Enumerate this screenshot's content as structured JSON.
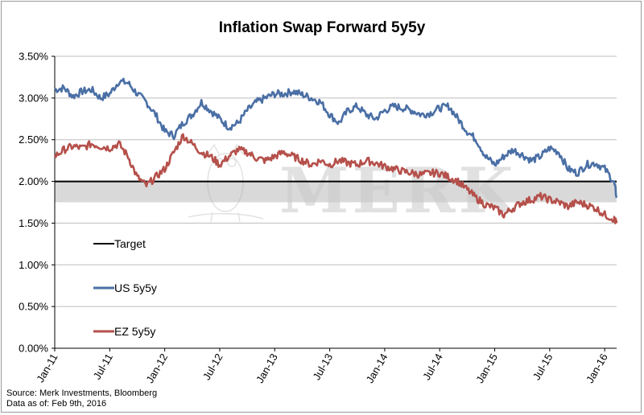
{
  "chart_data": {
    "type": "line",
    "title": "Inflation Swap Forward 5y5y",
    "watermark": "MERK",
    "ylim": [
      0,
      3.5
    ],
    "y_ticks": [
      "0.00%",
      "0.50%",
      "1.00%",
      "1.50%",
      "2.00%",
      "2.50%",
      "3.00%",
      "3.50%"
    ],
    "y_tick_values": [
      0,
      0.5,
      1,
      1.5,
      2,
      2.5,
      3,
      3.5
    ],
    "x_ticks": [
      "Jan-11",
      "Jul-11",
      "Jan-12",
      "Jul-12",
      "Jan-13",
      "Jul-13",
      "Jan-14",
      "Jul-14",
      "Jan-15",
      "Jul-15",
      "Jan-16"
    ],
    "x_tick_months": [
      0,
      6,
      12,
      18,
      24,
      30,
      36,
      42,
      48,
      54,
      60
    ],
    "x_range_months": [
      0,
      61.3
    ],
    "grid": "horizontal",
    "legend_position": "lower-left",
    "target_band": [
      1.75,
      2.0
    ],
    "target_value": 2.0,
    "series": [
      {
        "name": "Target",
        "color": "#000000",
        "x_months": [
          0,
          61.3
        ],
        "values": [
          2.0,
          2.0
        ]
      },
      {
        "name": "US 5y5y",
        "color": "#4a6fa5",
        "x_months": [
          0,
          1,
          2,
          3,
          4,
          5,
          6,
          7,
          8,
          9,
          10,
          11,
          12,
          13,
          14,
          15,
          16,
          17,
          18,
          19,
          20,
          21,
          22,
          23,
          24,
          25,
          26,
          27,
          28,
          29,
          30,
          31,
          32,
          33,
          34,
          35,
          36,
          37,
          38,
          39,
          40,
          41,
          42,
          43,
          44,
          45,
          46,
          47,
          48,
          49,
          50,
          51,
          52,
          53,
          54,
          55,
          56,
          57,
          58,
          59,
          60,
          61,
          61.3
        ],
        "values": [
          3.1,
          3.12,
          3.02,
          3.08,
          3.1,
          3.0,
          3.05,
          3.2,
          3.18,
          3.05,
          2.95,
          2.8,
          2.6,
          2.55,
          2.7,
          2.8,
          2.95,
          2.85,
          2.75,
          2.65,
          2.7,
          2.85,
          2.95,
          3.0,
          3.05,
          3.05,
          3.08,
          3.04,
          3.0,
          2.95,
          2.8,
          2.7,
          2.85,
          2.9,
          2.8,
          2.75,
          2.85,
          2.9,
          2.88,
          2.85,
          2.8,
          2.82,
          2.88,
          2.9,
          2.75,
          2.6,
          2.5,
          2.3,
          2.2,
          2.3,
          2.38,
          2.32,
          2.25,
          2.3,
          2.4,
          2.35,
          2.15,
          2.1,
          2.2,
          2.22,
          2.15,
          2.0,
          1.82
        ]
      },
      {
        "name": "EZ 5y5y",
        "color": "#b5504b",
        "x_months": [
          0,
          1,
          2,
          3,
          4,
          5,
          6,
          7,
          8,
          9,
          10,
          11,
          12,
          13,
          14,
          15,
          16,
          17,
          18,
          19,
          20,
          21,
          22,
          23,
          24,
          25,
          26,
          27,
          28,
          29,
          30,
          31,
          32,
          33,
          34,
          35,
          36,
          37,
          38,
          39,
          40,
          41,
          42,
          43,
          44,
          45,
          46,
          47,
          48,
          49,
          50,
          51,
          52,
          53,
          54,
          55,
          56,
          57,
          58,
          59,
          60,
          61,
          61.3
        ],
        "values": [
          2.3,
          2.38,
          2.42,
          2.4,
          2.45,
          2.42,
          2.4,
          2.45,
          2.3,
          2.05,
          1.95,
          2.05,
          2.15,
          2.35,
          2.55,
          2.45,
          2.35,
          2.3,
          2.2,
          2.3,
          2.38,
          2.35,
          2.28,
          2.25,
          2.3,
          2.35,
          2.3,
          2.25,
          2.2,
          2.25,
          2.2,
          2.25,
          2.22,
          2.2,
          2.25,
          2.22,
          2.18,
          2.15,
          2.12,
          2.1,
          2.08,
          2.1,
          2.1,
          2.05,
          2.0,
          1.9,
          1.8,
          1.72,
          1.68,
          1.6,
          1.68,
          1.75,
          1.78,
          1.82,
          1.78,
          1.75,
          1.7,
          1.75,
          1.72,
          1.68,
          1.6,
          1.55,
          1.5
        ]
      }
    ]
  },
  "footer": {
    "source": "Source: Merk Investments, Bloomberg",
    "data_as_of": "Data as of: Feb 9th, 2016"
  }
}
